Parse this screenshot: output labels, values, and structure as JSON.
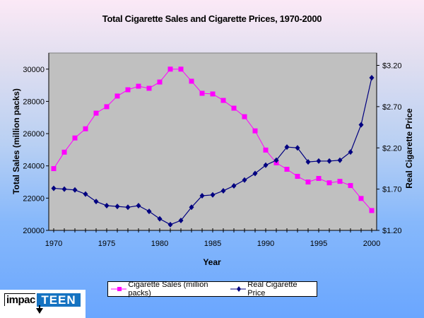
{
  "chart_data": {
    "type": "line",
    "title": "Total Cigarette Sales and Cigarette Prices, 1970-2000",
    "xlabel": "Year",
    "ylabel": "Total Sales (million packs)",
    "y2label": "Real Cigarette Price",
    "x": [
      1970,
      1971,
      1972,
      1973,
      1974,
      1975,
      1976,
      1977,
      1978,
      1979,
      1980,
      1981,
      1982,
      1983,
      1984,
      1985,
      1986,
      1987,
      1988,
      1989,
      1990,
      1991,
      1992,
      1993,
      1994,
      1995,
      1996,
      1997,
      1998,
      1999,
      2000
    ],
    "xlim": [
      1970,
      2000
    ],
    "xticks": [
      "1970",
      "1975",
      "1980",
      "1985",
      "1990",
      "1995",
      "2000"
    ],
    "ylim": [
      20000,
      31000
    ],
    "yticks": [
      "20000",
      "22000",
      "24000",
      "26000",
      "28000",
      "30000"
    ],
    "y2lim": [
      1.2,
      3.35
    ],
    "y2ticks": [
      "$1.20",
      "$1.70",
      "$2.20",
      "$2.70",
      "$3.20"
    ],
    "grid": false,
    "legend_position": "bottom",
    "series": [
      {
        "name": "Cigarette Sales (million packs)",
        "axis": "left",
        "color": "#ff00ff",
        "marker": "square",
        "values": [
          23830,
          24850,
          25730,
          26300,
          27270,
          27670,
          28330,
          28720,
          28940,
          28810,
          29200,
          30000,
          30000,
          29250,
          28500,
          28460,
          28060,
          27580,
          27050,
          26170,
          24980,
          24190,
          23790,
          23350,
          23000,
          23220,
          22950,
          23040,
          22780,
          21980,
          21230
        ]
      },
      {
        "name": "Real Cigarette Price",
        "axis": "right",
        "color": "#000080",
        "marker": "diamond",
        "values": [
          1.71,
          1.7,
          1.69,
          1.64,
          1.55,
          1.5,
          1.49,
          1.48,
          1.5,
          1.43,
          1.34,
          1.27,
          1.32,
          1.48,
          1.62,
          1.63,
          1.68,
          1.74,
          1.81,
          1.89,
          1.99,
          2.05,
          2.21,
          2.2,
          2.03,
          2.04,
          2.04,
          2.05,
          2.15,
          2.48,
          3.05
        ]
      }
    ]
  },
  "colors": {
    "plot_background": "#c0c0c0",
    "sales": "#ff00ff",
    "price": "#000080",
    "logo_blue": "#1573c1"
  },
  "logo": {
    "left_text": "impac",
    "right_text": "TEEN"
  }
}
